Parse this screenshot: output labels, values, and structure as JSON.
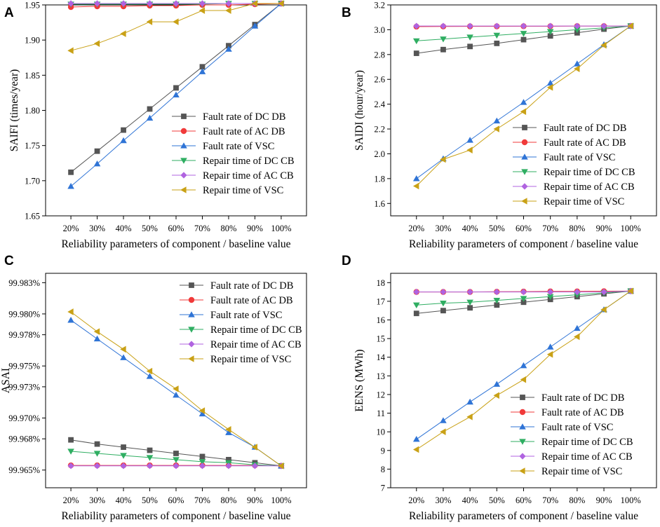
{
  "colors": {
    "dc_db_fault": "#555555",
    "ac_db_fault": "#f03a3a",
    "vsc_fault": "#2f74d6",
    "dc_cb_repair": "#2fae62",
    "ac_cb_repair": "#b063e0",
    "vsc_repair": "#c9a116"
  },
  "chart_data": [
    {
      "panel": "A",
      "type": "line",
      "ylabel": "SAIFI (times/year)",
      "xlabel": "Reliability parameters of component / baseline value",
      "categories": [
        "20%",
        "30%",
        "40%",
        "50%",
        "60%",
        "70%",
        "80%",
        "90%",
        "100%"
      ],
      "ylim": [
        1.65,
        1.95
      ],
      "yticks": [
        1.65,
        1.7,
        1.75,
        1.8,
        1.85,
        1.9,
        1.95
      ],
      "ytick_labels": [
        "1.65",
        "1.70",
        "1.75",
        "1.80",
        "1.85",
        "1.90",
        "1.95"
      ],
      "legend_position": "center-right",
      "series": [
        {
          "name": "Fault rate of DC DB",
          "marker": "square",
          "color_key": "dc_db_fault",
          "values": [
            1.712,
            1.742,
            1.772,
            1.802,
            1.832,
            1.862,
            1.892,
            1.922,
            1.952
          ]
        },
        {
          "name": "Fault rate of AC DB",
          "marker": "circle",
          "color_key": "ac_db_fault",
          "values": [
            1.947,
            1.948,
            1.948,
            1.949,
            1.949,
            1.95,
            1.95,
            1.951,
            1.952
          ]
        },
        {
          "name": "Fault rate of VSC",
          "marker": "triangle-up",
          "color_key": "vsc_fault",
          "values": [
            1.692,
            1.724,
            1.757,
            1.789,
            1.822,
            1.855,
            1.887,
            1.92,
            1.952
          ]
        },
        {
          "name": "Repair time of DC CB",
          "marker": "triangle-down",
          "color_key": "dc_cb_repair",
          "values": [
            1.951,
            1.951,
            1.951,
            1.951,
            1.951,
            1.951,
            1.952,
            1.952,
            1.952
          ]
        },
        {
          "name": "Repair time of AC CB",
          "marker": "diamond",
          "color_key": "ac_cb_repair",
          "values": [
            1.952,
            1.952,
            1.952,
            1.952,
            1.952,
            1.952,
            1.952,
            1.952,
            1.952
          ]
        },
        {
          "name": "Repair time of VSC",
          "marker": "triangle-left",
          "color_key": "vsc_repair",
          "values": [
            1.885,
            1.895,
            1.909,
            1.926,
            1.926,
            1.942,
            1.942,
            1.952,
            1.952
          ]
        }
      ]
    },
    {
      "panel": "B",
      "type": "line",
      "ylabel": "SAIDI (hour/year)",
      "xlabel": "Reliability parameters of component / baseline value",
      "categories": [
        "20%",
        "30%",
        "40%",
        "50%",
        "60%",
        "70%",
        "80%",
        "90%",
        "100%"
      ],
      "ylim": [
        1.5,
        3.2
      ],
      "yticks": [
        1.6,
        1.8,
        2.0,
        2.2,
        2.4,
        2.6,
        2.8,
        3.0,
        3.2
      ],
      "ytick_labels": [
        "1.6",
        "1.8",
        "2.0",
        "2.2",
        "2.4",
        "2.6",
        "2.8",
        "3.0",
        "3.2"
      ],
      "legend_position": "bottom-right",
      "series": [
        {
          "name": "Fault rate of DC DB",
          "marker": "square",
          "color_key": "dc_db_fault",
          "values": [
            2.81,
            2.84,
            2.865,
            2.89,
            2.92,
            2.95,
            2.975,
            3.005,
            3.03
          ]
        },
        {
          "name": "Fault rate of AC DB",
          "marker": "circle",
          "color_key": "ac_db_fault",
          "values": [
            3.025,
            3.026,
            3.027,
            3.027,
            3.028,
            3.028,
            3.029,
            3.029,
            3.03
          ]
        },
        {
          "name": "Fault rate of VSC",
          "marker": "triangle-up",
          "color_key": "vsc_fault",
          "values": [
            1.8,
            1.96,
            2.11,
            2.265,
            2.415,
            2.57,
            2.725,
            2.88,
            3.03
          ]
        },
        {
          "name": "Repair time of DC CB",
          "marker": "triangle-down",
          "color_key": "dc_cb_repair",
          "values": [
            2.91,
            2.925,
            2.94,
            2.955,
            2.97,
            2.985,
            3.0,
            3.015,
            3.03
          ]
        },
        {
          "name": "Repair time of AC CB",
          "marker": "diamond",
          "color_key": "ac_cb_repair",
          "values": [
            3.03,
            3.03,
            3.03,
            3.03,
            3.03,
            3.03,
            3.03,
            3.03,
            3.03
          ]
        },
        {
          "name": "Repair time of VSC",
          "marker": "triangle-left",
          "color_key": "vsc_repair",
          "values": [
            1.74,
            1.955,
            2.03,
            2.2,
            2.34,
            2.535,
            2.685,
            2.875,
            3.03
          ]
        }
      ]
    },
    {
      "panel": "C",
      "type": "line",
      "ylabel": "ASAI",
      "xlabel": "Reliability parameters of component / baseline value",
      "categories": [
        "20%",
        "30%",
        "40%",
        "50%",
        "60%",
        "70%",
        "80%",
        "90%",
        "100%"
      ],
      "ylim": [
        99.9633,
        99.9839
      ],
      "yticks": [
        99.965,
        99.968,
        99.97,
        99.973,
        99.975,
        99.978,
        99.98,
        99.983
      ],
      "ytick_labels": [
        "99.965%",
        "99.968%",
        "99.970%",
        "99.973%",
        "99.975%",
        "99.978%",
        "99.980%",
        "99.983%"
      ],
      "legend_position": "top-right",
      "series": [
        {
          "name": "Fault rate of DC DB",
          "marker": "square",
          "color_key": "dc_db_fault",
          "values": [
            99.9679,
            99.9675,
            99.9672,
            99.9669,
            99.9666,
            99.9663,
            99.966,
            99.9657,
            99.9654
          ]
        },
        {
          "name": "Fault rate of AC DB",
          "marker": "circle",
          "color_key": "ac_db_fault",
          "values": [
            99.96545,
            99.96545,
            99.96545,
            99.96545,
            99.96545,
            99.96545,
            99.96545,
            99.96545,
            99.9654
          ]
        },
        {
          "name": "Fault rate of VSC",
          "marker": "triangle-up",
          "color_key": "vsc_fault",
          "values": [
            99.9794,
            99.9776,
            99.9758,
            99.974,
            99.9722,
            99.9704,
            99.9686,
            99.9672,
            99.9654
          ]
        },
        {
          "name": "Repair time of DC CB",
          "marker": "triangle-down",
          "color_key": "dc_cb_repair",
          "values": [
            99.9668,
            99.9666,
            99.9664,
            99.9662,
            99.966,
            99.9658,
            99.9657,
            99.9655,
            99.9654
          ]
        },
        {
          "name": "Repair time of AC CB",
          "marker": "diamond",
          "color_key": "ac_cb_repair",
          "values": [
            99.9654,
            99.9654,
            99.9654,
            99.9654,
            99.9654,
            99.9654,
            99.9654,
            99.9654,
            99.9654
          ]
        },
        {
          "name": "Repair time of VSC",
          "marker": "triangle-left",
          "color_key": "vsc_repair",
          "values": [
            99.9802,
            99.9783,
            99.9766,
            99.9745,
            99.9728,
            99.9707,
            99.9689,
            99.9672,
            99.9654
          ]
        }
      ]
    },
    {
      "panel": "D",
      "type": "line",
      "ylabel": "EENS (MWh)",
      "xlabel": "Reliability parameters of component / baseline value",
      "categories": [
        "20%",
        "30%",
        "40%",
        "50%",
        "60%",
        "70%",
        "80%",
        "90%",
        "100%"
      ],
      "ylim": [
        7,
        18.5
      ],
      "yticks": [
        7,
        8,
        9,
        10,
        11,
        12,
        13,
        14,
        15,
        16,
        17,
        18
      ],
      "ytick_labels": [
        "7",
        "8",
        "9",
        "10",
        "11",
        "12",
        "13",
        "14",
        "15",
        "16",
        "17",
        "18"
      ],
      "legend_position": "bottom-right",
      "series": [
        {
          "name": "Fault rate of DC DB",
          "marker": "square",
          "color_key": "dc_db_fault",
          "values": [
            16.35,
            16.5,
            16.65,
            16.8,
            16.95,
            17.1,
            17.25,
            17.4,
            17.55
          ]
        },
        {
          "name": "Fault rate of AC DB",
          "marker": "circle",
          "color_key": "ac_db_fault",
          "values": [
            17.5,
            17.5,
            17.5,
            17.51,
            17.52,
            17.53,
            17.53,
            17.54,
            17.55
          ]
        },
        {
          "name": "Fault rate of VSC",
          "marker": "triangle-up",
          "color_key": "vsc_fault",
          "values": [
            9.6,
            10.6,
            11.6,
            12.55,
            13.55,
            14.55,
            15.55,
            16.55,
            17.55
          ]
        },
        {
          "name": "Repair time of DC CB",
          "marker": "triangle-down",
          "color_key": "dc_cb_repair",
          "values": [
            16.8,
            16.9,
            16.95,
            17.05,
            17.15,
            17.25,
            17.35,
            17.45,
            17.55
          ]
        },
        {
          "name": "Repair time of AC CB",
          "marker": "diamond",
          "color_key": "ac_cb_repair",
          "values": [
            17.5,
            17.5,
            17.5,
            17.5,
            17.5,
            17.5,
            17.5,
            17.5,
            17.55
          ]
        },
        {
          "name": "Repair time of VSC",
          "marker": "triangle-left",
          "color_key": "vsc_repair",
          "values": [
            9.05,
            10.0,
            10.8,
            11.95,
            12.8,
            14.15,
            15.1,
            16.55,
            17.55
          ]
        }
      ]
    }
  ]
}
